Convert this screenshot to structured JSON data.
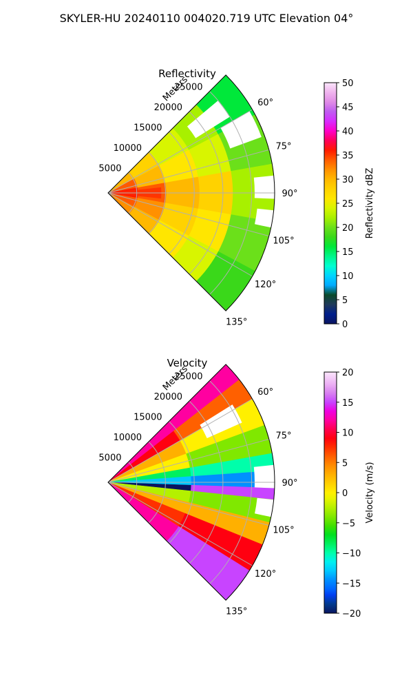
{
  "figure_title": "SKYLER-HU  20240110  004020.719 UTC Elevation 04°",
  "colors": {
    "background": "#ffffff",
    "grid": "#b0b0b0",
    "frame": "#000000"
  },
  "chart_data": [
    {
      "type": "heatmap",
      "projection": "polar-sector",
      "title": "Reflectivity",
      "range_axis_label": "Meters",
      "range_ticks": [
        5000,
        10000,
        15000,
        20000,
        25000
      ],
      "range_tick_labels": [
        "5000",
        "10000",
        "15000",
        "20000",
        "25000"
      ],
      "range_max": 29000,
      "angle_range_deg": [
        45,
        135
      ],
      "angle_ticks": [
        60,
        75,
        90,
        105,
        120,
        135
      ],
      "angle_tick_labels": [
        "60°",
        "75°",
        "90°",
        "105°",
        "120°",
        "135°"
      ],
      "grid": true,
      "colorbar": {
        "label": "Reflectivity dBZ",
        "range": [
          0,
          50
        ],
        "ticks": [
          0,
          5,
          10,
          15,
          20,
          25,
          30,
          35,
          40,
          45,
          50
        ],
        "tick_labels": [
          "0",
          "5",
          "10",
          "15",
          "20",
          "25",
          "30",
          "35",
          "40",
          "45",
          "50"
        ],
        "colormap": "NWS reflectivity"
      },
      "description_values": {
        "near_range_dbz": 36,
        "mid_range_dbz": 29,
        "far_range_dbz": 22,
        "data_gaps_near_north_edge": true
      }
    },
    {
      "type": "heatmap",
      "projection": "polar-sector",
      "title": "Velocity",
      "range_axis_label": "Meters",
      "range_ticks": [
        5000,
        10000,
        15000,
        20000,
        25000
      ],
      "range_tick_labels": [
        "5000",
        "10000",
        "15000",
        "20000",
        "25000"
      ],
      "range_max": 29000,
      "angle_range_deg": [
        45,
        135
      ],
      "angle_ticks": [
        60,
        75,
        90,
        105,
        120,
        135
      ],
      "angle_tick_labels": [
        "60°",
        "75°",
        "90°",
        "105°",
        "120°",
        "135°"
      ],
      "grid": true,
      "colorbar": {
        "label": "Velocity (m/s)",
        "range": [
          -20,
          20
        ],
        "ticks": [
          -20,
          -15,
          -10,
          -5,
          0,
          5,
          10,
          15,
          20
        ],
        "tick_labels": [
          "−20",
          "−15",
          "−10",
          "−5",
          "0",
          "5",
          "10",
          "15",
          "20"
        ],
        "colormap": "NWS velocity"
      },
      "description_values": {
        "north_far_ms": 12,
        "north_mid_ms": 0,
        "along_90deg_ms": -12,
        "south_near_ms": 12,
        "south_far_ms": 16,
        "aliasing_band_ms": -20
      }
    }
  ]
}
